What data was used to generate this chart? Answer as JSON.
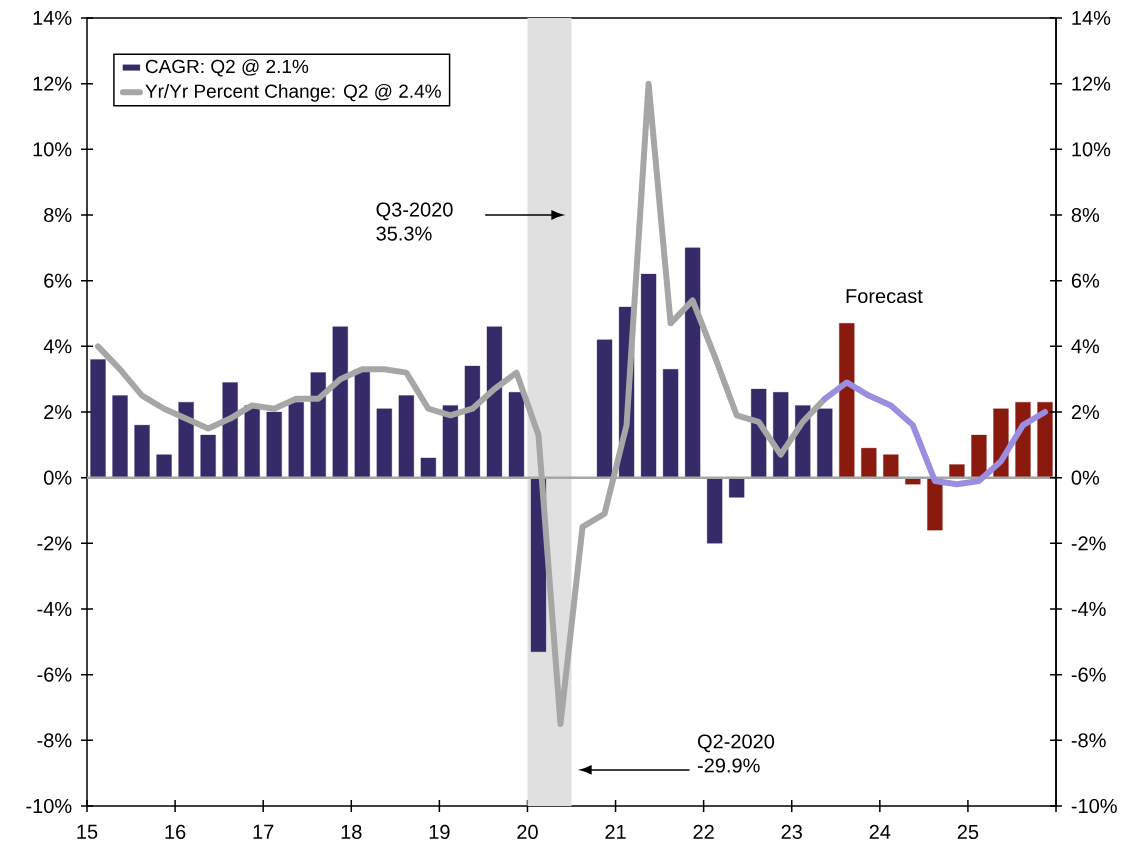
{
  "chart_data": {
    "type": "bar",
    "x": [
      15.125,
      15.375,
      15.625,
      15.875,
      16.125,
      16.375,
      16.625,
      16.875,
      17.125,
      17.375,
      17.625,
      17.875,
      18.125,
      18.375,
      18.625,
      18.875,
      19.125,
      19.375,
      19.625,
      19.875,
      20.125,
      20.375,
      20.625,
      20.875,
      21.125,
      21.375,
      21.625,
      21.875,
      22.125,
      22.375,
      22.625,
      22.875,
      23.125,
      23.375,
      23.625,
      23.875,
      24.125,
      24.375,
      24.625,
      24.875,
      25.125,
      25.375,
      25.625,
      25.875
    ],
    "series": [
      {
        "name": "CAGR: Q2 @ 2.1%",
        "color": "#372a68",
        "values": [
          3.6,
          2.5,
          1.6,
          0.7,
          2.3,
          1.3,
          2.9,
          2.2,
          2.0,
          2.3,
          3.2,
          4.6,
          3.3,
          2.1,
          2.5,
          0.6,
          2.2,
          3.4,
          4.6,
          2.6,
          -5.3,
          null,
          null,
          4.2,
          5.2,
          6.2,
          3.3,
          7.0,
          -2.0,
          -0.6,
          2.7,
          2.6,
          2.2,
          2.1,
          null,
          null,
          null,
          null,
          null,
          null,
          null,
          null,
          null,
          null
        ]
      },
      {
        "color": "#8b1a0e",
        "values": [
          null,
          null,
          null,
          null,
          null,
          null,
          null,
          null,
          null,
          null,
          null,
          null,
          null,
          null,
          null,
          null,
          null,
          null,
          null,
          null,
          null,
          null,
          null,
          null,
          null,
          null,
          null,
          null,
          null,
          null,
          null,
          null,
          null,
          null,
          4.7,
          0.9,
          0.7,
          -0.2,
          -1.6,
          0.4,
          1.3,
          2.1,
          2.3,
          2.3
        ]
      },
      {
        "name": "Yr/Yr Percent Change: Q2 @ 2.4%",
        "type": "line",
        "color": "#a6a6a6",
        "values": [
          4.0,
          3.3,
          2.5,
          2.1,
          1.8,
          1.5,
          1.8,
          2.2,
          2.1,
          2.4,
          2.4,
          3.0,
          3.3,
          3.3,
          3.2,
          2.1,
          1.9,
          2.1,
          2.7,
          3.2,
          1.3,
          -7.5,
          -1.5,
          -1.1,
          1.6,
          12.0,
          4.7,
          5.4,
          3.7,
          1.9,
          1.7,
          0.7,
          1.7,
          2.4,
          null,
          null,
          null,
          null,
          null,
          null,
          null,
          null,
          null,
          null
        ]
      },
      {
        "type": "line",
        "color": "#9b8ee0",
        "values": [
          null,
          null,
          null,
          null,
          null,
          null,
          null,
          null,
          null,
          null,
          null,
          null,
          null,
          null,
          null,
          null,
          null,
          null,
          null,
          null,
          null,
          null,
          null,
          null,
          null,
          null,
          null,
          null,
          null,
          null,
          null,
          null,
          null,
          2.4,
          2.9,
          2.5,
          2.2,
          1.6,
          -0.1,
          -0.2,
          -0.1,
          0.5,
          1.6,
          2.0
        ]
      }
    ],
    "xlim": [
      15,
      26
    ],
    "xticks": [
      15,
      16,
      17,
      18,
      19,
      20,
      21,
      22,
      23,
      24,
      25,
      {
        "value": 26,
        "label": null
      }
    ],
    "ylim": [
      -10,
      14
    ],
    "yticks": [
      {
        "value": -10,
        "label": "-10%"
      },
      {
        "value": -8,
        "label": "-8%"
      },
      {
        "value": -6,
        "label": "-6%"
      },
      {
        "value": -4,
        "label": "-4%"
      },
      {
        "value": -2,
        "label": "-2%"
      },
      {
        "value": 0,
        "label": "0%"
      },
      {
        "value": 2,
        "label": "2%"
      },
      {
        "value": 4,
        "label": "4%"
      },
      {
        "value": 6,
        "label": "6%"
      },
      {
        "value": 8,
        "label": "8%"
      },
      {
        "value": 10,
        "label": "10%"
      },
      {
        "value": 12,
        "label": "12%"
      },
      {
        "value": 14,
        "label": "14%"
      }
    ],
    "y2lim": [
      -10,
      14
    ],
    "y2ticks": [
      {
        "value": -10,
        "label": "-10%"
      },
      {
        "value": -8,
        "label": "-8%"
      },
      {
        "value": -6,
        "label": "-6%"
      },
      {
        "value": -4,
        "label": "-4%"
      },
      {
        "value": -2,
        "label": "-2%"
      },
      {
        "value": 0,
        "label": "0%"
      },
      {
        "value": 2,
        "label": "2%"
      },
      {
        "value": 4,
        "label": "4%"
      },
      {
        "value": 6,
        "label": "6%"
      },
      {
        "value": 8,
        "label": "8%"
      },
      {
        "value": 10,
        "label": "10%"
      },
      {
        "value": 12,
        "label": "12%"
      },
      {
        "value": 14,
        "label": "14%"
      }
    ],
    "bands": [
      {
        "axis": "x",
        "from": 20,
        "to": 20.5,
        "color": "#e0e0e0"
      }
    ],
    "ref_lines": [
      {
        "axis": "y",
        "value": 0,
        "color": "#a6a6a6"
      }
    ],
    "annotations": [
      "Q3-2020 35.3%",
      "Q2-2020 -29.9%",
      "Forecast"
    ],
    "legend": "top left"
  }
}
